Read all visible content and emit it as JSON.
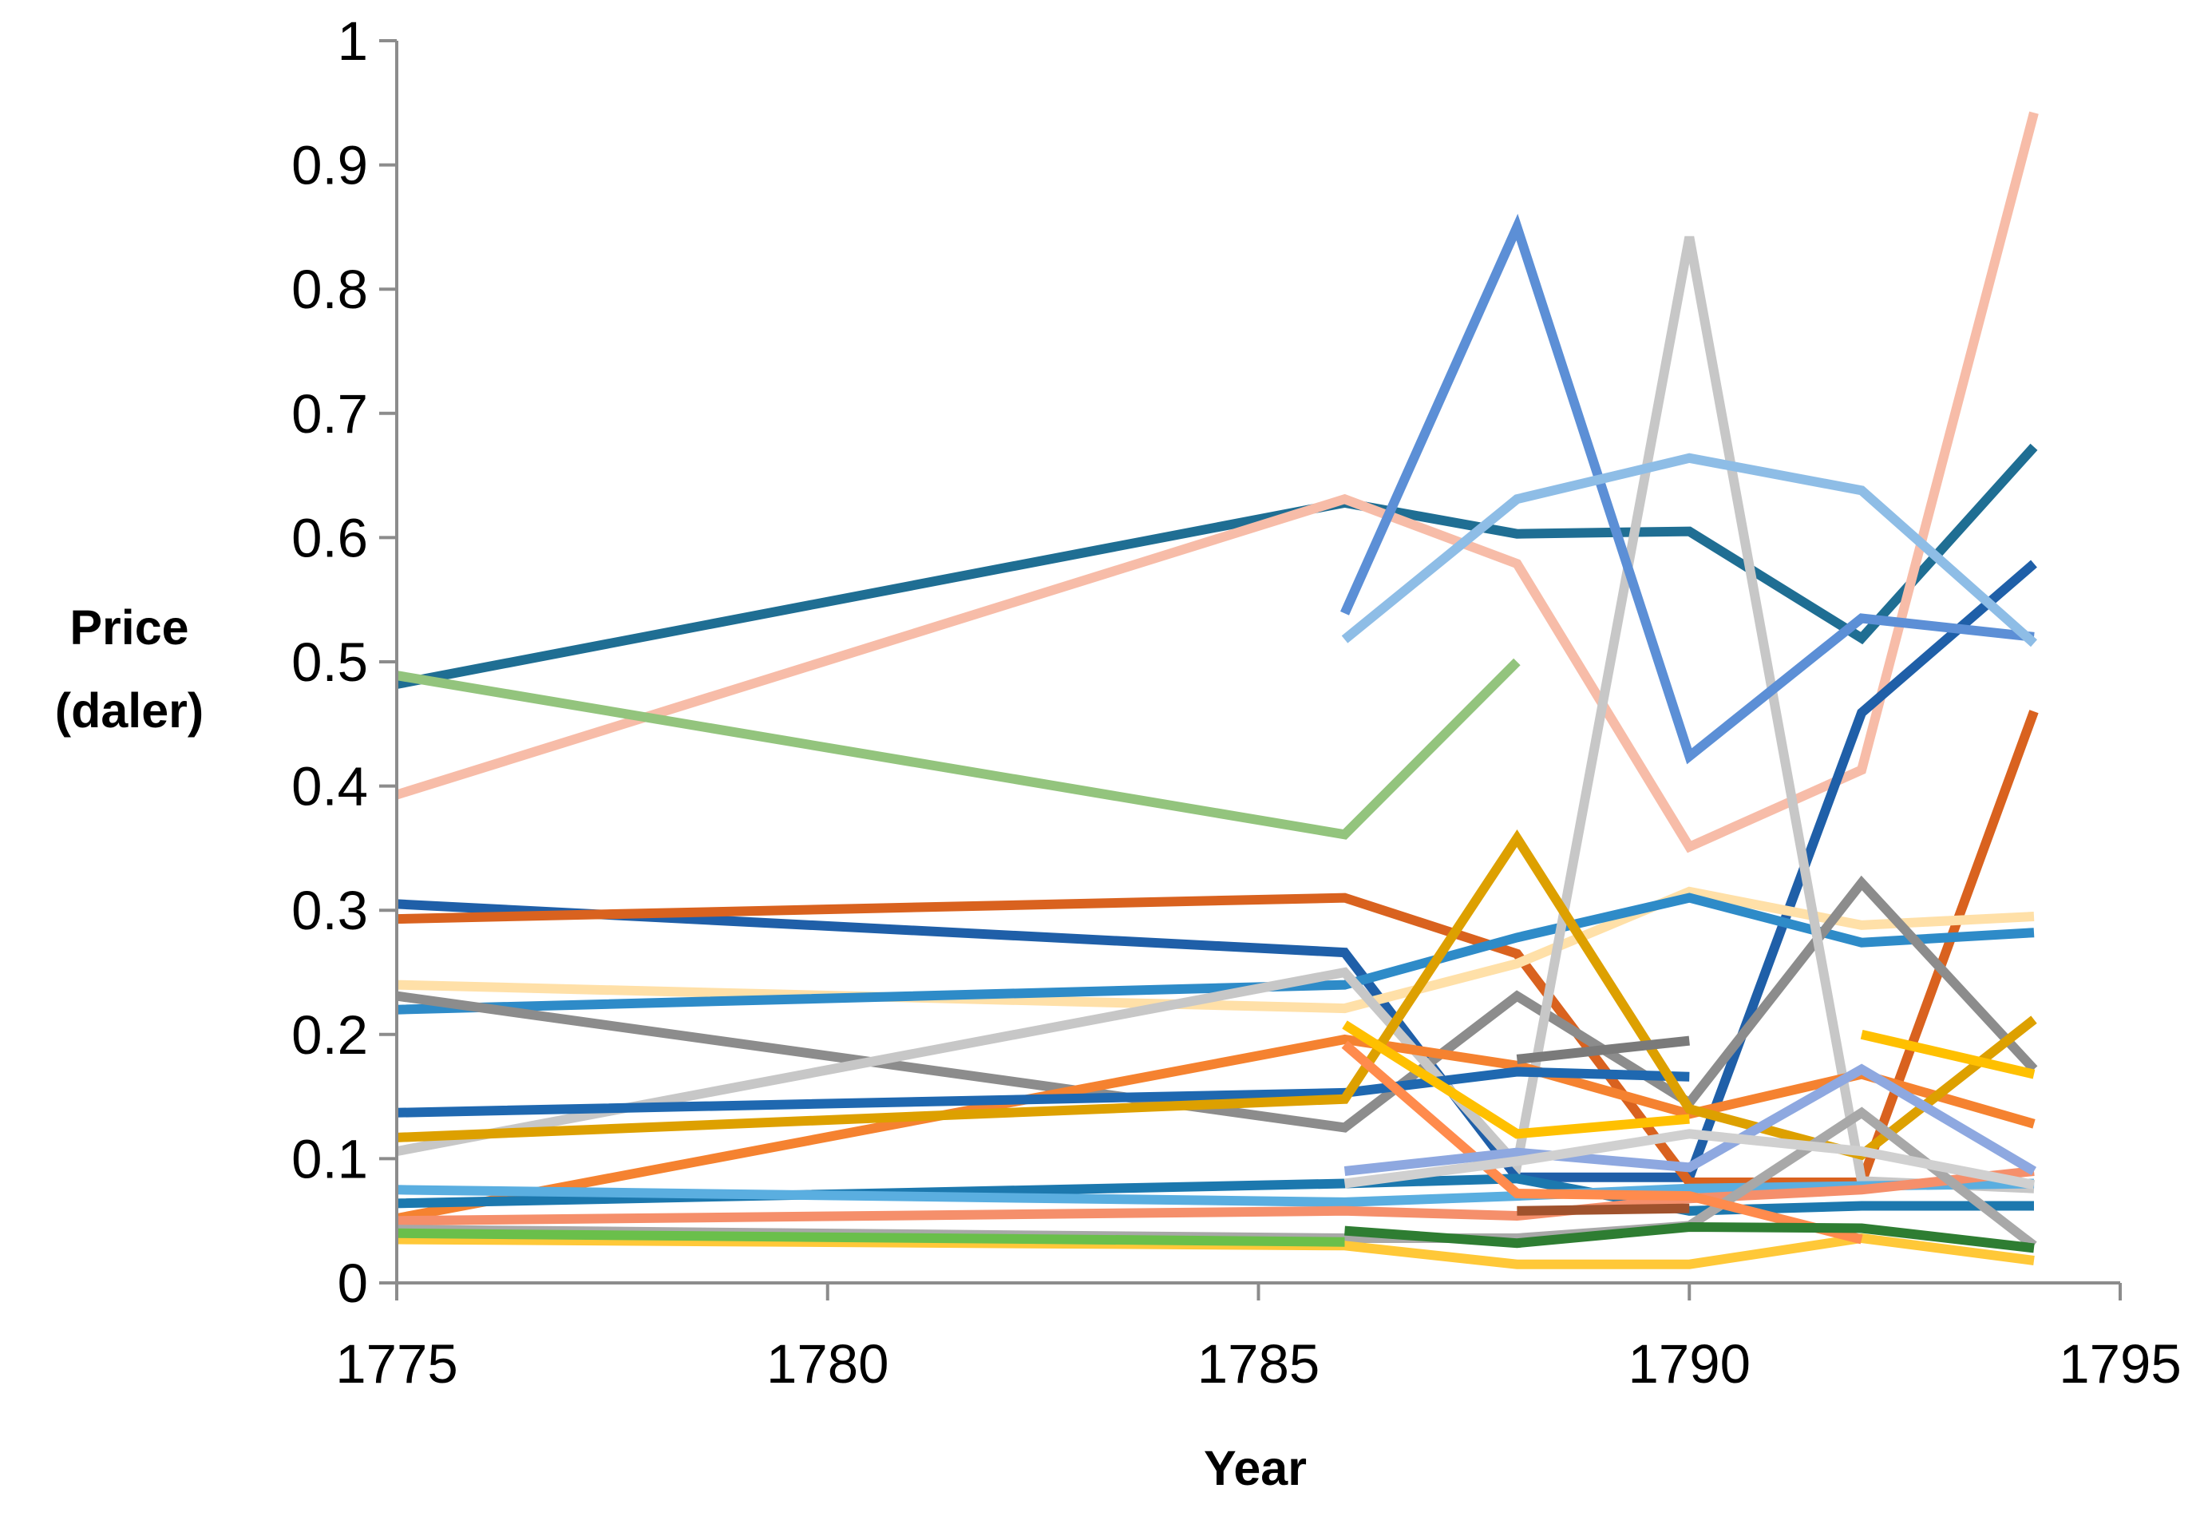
{
  "chart_data": {
    "type": "line",
    "title": "",
    "xlabel": "Year",
    "ylabel_lines": [
      "Price",
      "(daler)"
    ],
    "xlim": [
      1775,
      1795
    ],
    "ylim": [
      0,
      1
    ],
    "x_ticks": [
      1775,
      1780,
      1785,
      1790,
      1795
    ],
    "y_ticks": [
      0,
      0.1,
      0.2,
      0.3,
      0.4,
      0.5,
      0.6,
      0.7,
      0.8,
      0.9,
      1
    ],
    "x_tick_labels": [
      "1775",
      "1780",
      "1785",
      "1790",
      "1795"
    ],
    "y_tick_labels": [
      "0",
      "0.1",
      "0.2",
      "0.3",
      "0.4",
      "0.5",
      "0.6",
      "0.7",
      "0.8",
      "0.9",
      "1"
    ],
    "grid": false,
    "legend": "none",
    "series": [
      {
        "color": "#1F6E93",
        "points": [
          [
            1775,
            0.482
          ],
          [
            1786,
            0.628
          ],
          [
            1788,
            0.603
          ],
          [
            1790,
            0.605
          ],
          [
            1792,
            0.519
          ],
          [
            1794,
            0.673
          ]
        ]
      },
      {
        "color": "#F7BCA8",
        "points": [
          [
            1775,
            0.393
          ],
          [
            1786,
            0.631
          ],
          [
            1788,
            0.579
          ],
          [
            1790,
            0.351
          ],
          [
            1792,
            0.413
          ],
          [
            1794,
            0.942
          ]
        ]
      },
      {
        "color": "#93C47D",
        "points": [
          [
            1775,
            0.489
          ],
          [
            1786,
            0.361
          ],
          [
            1788,
            0.5
          ]
        ]
      },
      {
        "color": "#1F5FA8",
        "points": [
          [
            1775,
            0.305
          ],
          [
            1786,
            0.266
          ],
          [
            1788,
            0.085
          ],
          [
            1790,
            0.085
          ],
          [
            1792,
            0.459
          ],
          [
            1794,
            0.579
          ]
        ]
      },
      {
        "color": "#D9621F",
        "points": [
          [
            1775,
            0.293
          ],
          [
            1786,
            0.31
          ],
          [
            1788,
            0.265
          ],
          [
            1790,
            0.081
          ],
          [
            1792,
            0.081
          ],
          [
            1794,
            0.46
          ]
        ]
      },
      {
        "color": "#FFE0A8",
        "points": [
          [
            1775,
            0.24
          ],
          [
            1786,
            0.221
          ],
          [
            1788,
            0.257
          ],
          [
            1790,
            0.315
          ],
          [
            1792,
            0.288
          ],
          [
            1794,
            0.295
          ]
        ]
      },
      {
        "color": "#2E8BC8",
        "points": [
          [
            1775,
            0.22
          ],
          [
            1786,
            0.24
          ],
          [
            1788,
            0.278
          ],
          [
            1790,
            0.31
          ],
          [
            1792,
            0.274
          ],
          [
            1794,
            0.282
          ]
        ]
      },
      {
        "color": "#8C8C8C",
        "points": [
          [
            1775,
            0.231
          ],
          [
            1786,
            0.125
          ],
          [
            1788,
            0.231
          ],
          [
            1790,
            0.145
          ],
          [
            1792,
            0.322
          ],
          [
            1794,
            0.172
          ]
        ]
      },
      {
        "color": "#C7C7C7",
        "points": [
          [
            1775,
            0.106
          ],
          [
            1786,
            0.25
          ],
          [
            1788,
            0.095
          ],
          [
            1790,
            0.842
          ],
          [
            1792,
            0.082
          ],
          [
            1794,
            0.076
          ]
        ]
      },
      {
        "color": "#F58230",
        "points": [
          [
            1775,
            0.052
          ],
          [
            1786,
            0.196
          ],
          [
            1788,
            0.175
          ],
          [
            1790,
            0.136
          ],
          [
            1792,
            0.168
          ],
          [
            1794,
            0.128
          ]
        ]
      },
      {
        "color": "#1F68B0",
        "points": [
          [
            1775,
            0.137
          ],
          [
            1786,
            0.153
          ],
          [
            1788,
            0.17
          ],
          [
            1790,
            0.166
          ]
        ]
      },
      {
        "color": "#DDA000",
        "points": [
          [
            1775,
            0.117
          ],
          [
            1786,
            0.148
          ],
          [
            1788,
            0.358
          ],
          [
            1790,
            0.14
          ],
          [
            1792,
            0.103
          ],
          [
            1794,
            0.212
          ]
        ]
      },
      {
        "color": "#1C78AE",
        "points": [
          [
            1775,
            0.064
          ],
          [
            1786,
            0.08
          ],
          [
            1788,
            0.084
          ],
          [
            1790,
            0.058
          ],
          [
            1792,
            0.062
          ],
          [
            1794,
            0.062
          ]
        ]
      },
      {
        "color": "#5AAEE0",
        "points": [
          [
            1775,
            0.075
          ],
          [
            1786,
            0.065
          ],
          [
            1788,
            0.07
          ],
          [
            1790,
            0.076
          ],
          [
            1792,
            0.078
          ],
          [
            1794,
            0.08
          ]
        ]
      },
      {
        "color": "#F58F6B",
        "points": [
          [
            1775,
            0.05
          ],
          [
            1786,
            0.058
          ],
          [
            1788,
            0.054
          ],
          [
            1790,
            0.068
          ],
          [
            1792,
            0.075
          ],
          [
            1794,
            0.09
          ]
        ]
      },
      {
        "color": "#A8A8A8",
        "points": [
          [
            1775,
            0.043
          ],
          [
            1786,
            0.036
          ],
          [
            1788,
            0.036
          ],
          [
            1790,
            0.046
          ],
          [
            1792,
            0.137
          ],
          [
            1794,
            0.03
          ]
        ]
      },
      {
        "color": "#FFC838",
        "points": [
          [
            1775,
            0.035
          ],
          [
            1786,
            0.03
          ],
          [
            1788,
            0.015
          ],
          [
            1790,
            0.015
          ],
          [
            1792,
            0.036
          ],
          [
            1794,
            0.018
          ]
        ]
      },
      {
        "color": "#6ABF4B",
        "points": [
          [
            1775,
            0.04
          ],
          [
            1786,
            0.033
          ]
        ]
      },
      {
        "color": "#5C8FD6",
        "points": [
          [
            1786,
            0.539
          ],
          [
            1788,
            0.85
          ],
          [
            1790,
            0.424
          ],
          [
            1792,
            0.535
          ],
          [
            1794,
            0.52
          ]
        ]
      },
      {
        "color": "#8EBDE6",
        "points": [
          [
            1786,
            0.518
          ],
          [
            1788,
            0.631
          ],
          [
            1790,
            0.664
          ],
          [
            1792,
            0.638
          ],
          [
            1794,
            0.515
          ]
        ]
      },
      {
        "color": "#FFC000",
        "points": [
          [
            1786,
            0.208
          ],
          [
            1788,
            0.12
          ],
          [
            1790,
            0.132
          ]
        ]
      },
      {
        "color": "#FFC000",
        "points": [
          [
            1792,
            0.2
          ],
          [
            1794,
            0.168
          ]
        ]
      },
      {
        "color": "#FF8B4D",
        "points": [
          [
            1786,
            0.192
          ],
          [
            1788,
            0.072
          ],
          [
            1790,
            0.07
          ],
          [
            1792,
            0.035
          ]
        ]
      },
      {
        "color": "#8EA8E0",
        "points": [
          [
            1786,
            0.09
          ],
          [
            1788,
            0.105
          ],
          [
            1790,
            0.093
          ],
          [
            1792,
            0.172
          ],
          [
            1794,
            0.09
          ]
        ]
      },
      {
        "color": "#D0D0D0",
        "points": [
          [
            1786,
            0.08
          ],
          [
            1788,
            0.098
          ],
          [
            1790,
            0.12
          ],
          [
            1792,
            0.106
          ],
          [
            1794,
            0.079
          ]
        ]
      },
      {
        "color": "#2E7D32",
        "points": [
          [
            1786,
            0.042
          ],
          [
            1788,
            0.032
          ],
          [
            1790,
            0.045
          ],
          [
            1792,
            0.044
          ],
          [
            1794,
            0.028
          ]
        ]
      },
      {
        "color": "#7A7A7A",
        "points": [
          [
            1788,
            0.18
          ],
          [
            1790,
            0.195
          ]
        ]
      },
      {
        "color": "#A0522D",
        "points": [
          [
            1788,
            0.058
          ],
          [
            1790,
            0.06
          ]
        ]
      }
    ]
  }
}
